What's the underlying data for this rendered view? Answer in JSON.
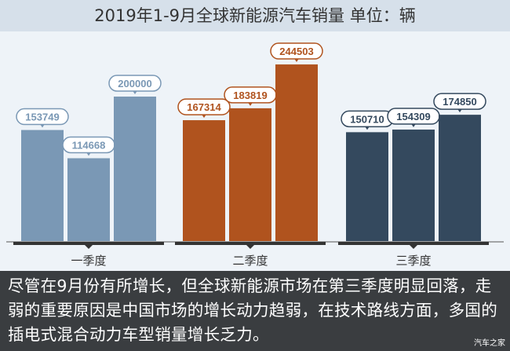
{
  "title": "2019年1-9月全球新能源汽车销量  单位：辆",
  "note": "尽管在9月份有所增长，但全球新能源市场在第三季度明显回落，走弱的重要原因是中国市场的增长动力趋弱，在技术路线方面，多国的插电式混合动力车型销量增长乏力。",
  "watermark": "汽车之家",
  "chart_data": {
    "type": "bar",
    "title": "2019年1-9月全球新能源汽车销量  单位：辆",
    "categories": [
      "一季度",
      "二季度",
      "三季度"
    ],
    "groups": [
      {
        "category": "一季度",
        "values": [
          153749,
          114668,
          200000
        ],
        "color": "#7a98b5"
      },
      {
        "category": "二季度",
        "values": [
          167314,
          183819,
          244503
        ],
        "color": "#b0531e"
      },
      {
        "category": "三季度",
        "values": [
          150710,
          154309,
          174850
        ],
        "color": "#34495e"
      }
    ],
    "ylim": [
      0,
      250000
    ],
    "grid": false
  }
}
